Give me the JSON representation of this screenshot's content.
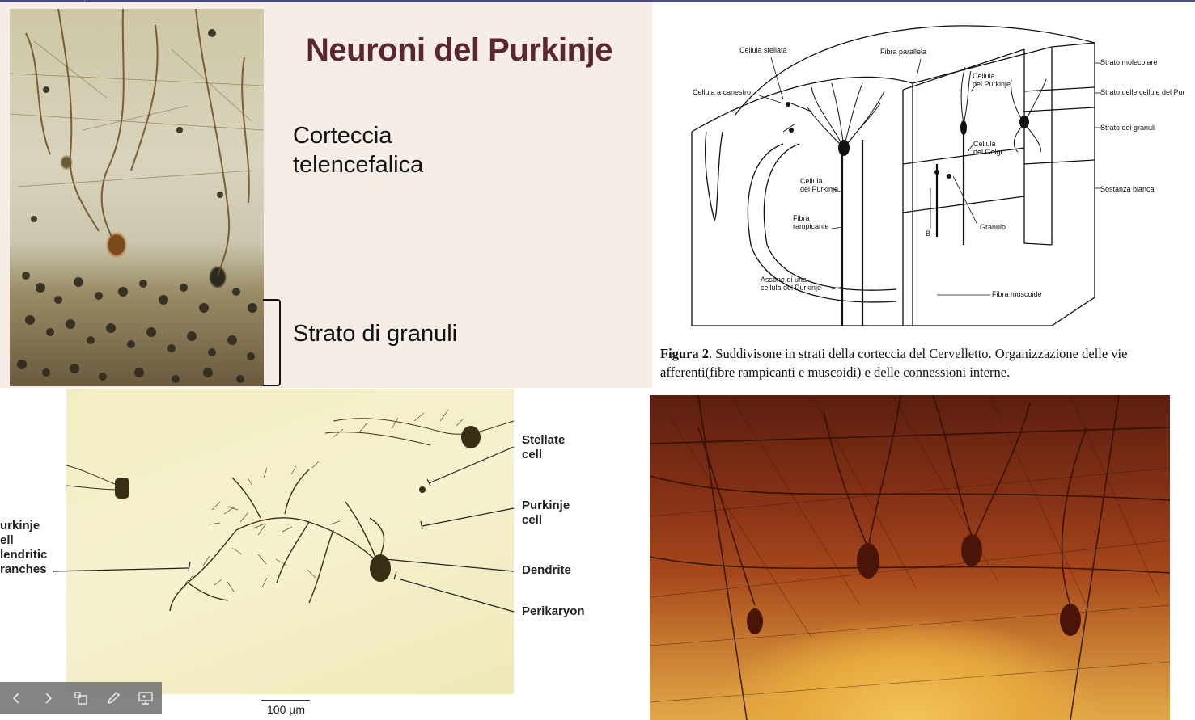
{
  "slide": {
    "title": "Neuroni del Purkinje",
    "label_cortex_line1": "Corteccia",
    "label_cortex_line2": "telencefalica",
    "label_granuli": "Strato di granuli"
  },
  "diagram": {
    "labels": {
      "stellata": "Cellula stellata",
      "parallela": "Fibra parallela",
      "canestro": "Cellula a canestro",
      "purkinje_top_1": "Cellula",
      "purkinje_top_2": "del Purkinje",
      "golgi_1": "Cellula",
      "golgi_2": "del Golgi",
      "purkinje_mid_1": "Cellula",
      "purkinje_mid_2": "del Purkinje",
      "rampicante_1": "Fibra",
      "rampicante_2": "rampicante",
      "granulo": "Granulo",
      "b": "B",
      "assone_1": "Assone di una",
      "assone_2": "cellula del Purkinje",
      "muscoide": "Fibra muscoide",
      "strato_molecolare": "Strato molecolare",
      "strato_purkinje": "Strato delle cellule del Pur",
      "strato_granuli": "Strato dei granuli",
      "sostanza_bianca": "Sostanza bianca"
    },
    "caption_bold": "Figura 2",
    "caption_text": ". Suddivisone in strati della corteccia del Cervelletto. Organizzazione delle vie afferenti(fibre rampicanti e muscoidi) e delle connessioni interne."
  },
  "golgi_photo": {
    "labels": {
      "stellate_1": "Stellate",
      "stellate_2": "cell",
      "purkinje_1": "Purkinje",
      "purkinje_2": "cell",
      "dendrite": "Dendrite",
      "perikaryon": "Perikaryon",
      "branches_1": "urkinje",
      "branches_2": "ell",
      "branches_3": "lendritic",
      "branches_4": "ranches"
    },
    "scale": "100 µm"
  },
  "toolbar": {
    "icons": [
      "chevron-left-icon",
      "chevron-right-icon",
      "slides-grid-icon",
      "pen-icon",
      "presenter-view-icon"
    ]
  }
}
